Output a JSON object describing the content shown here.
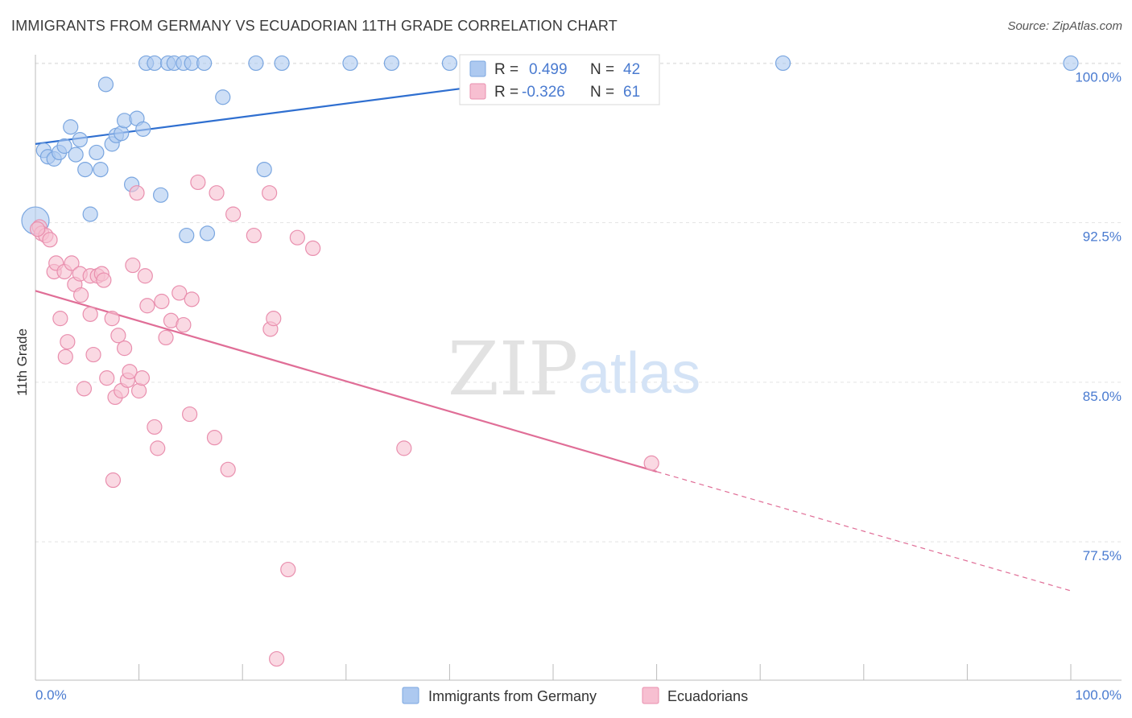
{
  "header": {
    "title": "IMMIGRANTS FROM GERMANY VS ECUADORIAN 11TH GRADE CORRELATION CHART",
    "source": "Source: ZipAtlas.com"
  },
  "watermark": {
    "zip": "ZIP",
    "atlas": "atlas"
  },
  "colors": {
    "germany_fill": "#adc9f0",
    "germany_stroke": "#7aa6e0",
    "germany_line": "#2f6fd0",
    "ecuador_fill": "#f7bfd1",
    "ecuador_stroke": "#e98fae",
    "ecuador_line": "#e06e97",
    "axis_text": "#4a7bd0",
    "grid": "#e3e3e3"
  },
  "stats": {
    "germany": {
      "r_label": "R =",
      "r_value": "0.499",
      "n_label": "N =",
      "n_value": "42"
    },
    "ecuador": {
      "r_label": "R =",
      "r_value": "-0.326",
      "n_label": "N =",
      "n_value": "61"
    }
  },
  "chart_data": {
    "type": "scatter",
    "title": "IMMIGRANTS FROM GERMANY VS ECUADORIAN 11TH GRADE CORRELATION CHART",
    "xlabel": "",
    "ylabel": "11th Grade",
    "xlim": [
      0,
      100
    ],
    "ylim": [
      71.0,
      101.0
    ],
    "x_tick_labels": [
      "0.0%",
      "100.0%"
    ],
    "y_ticks": [
      77.5,
      85.0,
      92.5,
      100.0
    ],
    "y_tick_labels": [
      "77.5%",
      "85.0%",
      "92.5%",
      "100.0%"
    ],
    "grid": true,
    "legend_position": "bottom",
    "series": [
      {
        "name": "Immigrants from Germany",
        "trend": {
          "x": [
            0,
            60
          ],
          "y": [
            96.2,
            100.0
          ],
          "dashed_to": null
        },
        "points": [
          {
            "x": 0.0,
            "y": 92.6,
            "big": true
          },
          {
            "x": 0.8,
            "y": 95.9
          },
          {
            "x": 1.2,
            "y": 95.6
          },
          {
            "x": 1.8,
            "y": 95.5
          },
          {
            "x": 2.3,
            "y": 95.8
          },
          {
            "x": 2.8,
            "y": 96.1
          },
          {
            "x": 3.4,
            "y": 97.0
          },
          {
            "x": 3.9,
            "y": 95.7
          },
          {
            "x": 4.3,
            "y": 96.4
          },
          {
            "x": 4.8,
            "y": 95.0
          },
          {
            "x": 5.3,
            "y": 92.9
          },
          {
            "x": 5.9,
            "y": 95.8
          },
          {
            "x": 6.3,
            "y": 95.0
          },
          {
            "x": 6.8,
            "y": 99.0
          },
          {
            "x": 7.4,
            "y": 96.2
          },
          {
            "x": 7.8,
            "y": 96.6
          },
          {
            "x": 8.3,
            "y": 96.7
          },
          {
            "x": 8.6,
            "y": 97.3
          },
          {
            "x": 9.3,
            "y": 94.3
          },
          {
            "x": 9.8,
            "y": 97.4
          },
          {
            "x": 10.4,
            "y": 96.9
          },
          {
            "x": 10.7,
            "y": 100.0
          },
          {
            "x": 11.5,
            "y": 100.0
          },
          {
            "x": 12.1,
            "y": 93.8
          },
          {
            "x": 12.8,
            "y": 100.0
          },
          {
            "x": 13.4,
            "y": 100.0
          },
          {
            "x": 14.3,
            "y": 100.0
          },
          {
            "x": 15.1,
            "y": 100.0
          },
          {
            "x": 14.6,
            "y": 91.9
          },
          {
            "x": 16.3,
            "y": 100.0
          },
          {
            "x": 16.6,
            "y": 92.0
          },
          {
            "x": 18.1,
            "y": 98.4
          },
          {
            "x": 21.3,
            "y": 100.0
          },
          {
            "x": 22.1,
            "y": 95.0
          },
          {
            "x": 23.8,
            "y": 100.0
          },
          {
            "x": 30.4,
            "y": 100.0
          },
          {
            "x": 34.4,
            "y": 100.0
          },
          {
            "x": 40.0,
            "y": 100.0
          },
          {
            "x": 50.1,
            "y": 100.0
          },
          {
            "x": 50.8,
            "y": 100.0
          },
          {
            "x": 72.2,
            "y": 100.0
          },
          {
            "x": 100.0,
            "y": 100.0
          }
        ]
      },
      {
        "name": "Ecuadorians",
        "trend": {
          "x": [
            0,
            60
          ],
          "y": [
            89.3,
            80.8
          ],
          "dashed_to": {
            "x": 100,
            "y": 75.2
          }
        },
        "points": [
          {
            "x": 0.4,
            "y": 92.3
          },
          {
            "x": 0.6,
            "y": 92.0
          },
          {
            "x": 1.0,
            "y": 91.9
          },
          {
            "x": 1.4,
            "y": 91.7
          },
          {
            "x": 1.8,
            "y": 90.2
          },
          {
            "x": 2.0,
            "y": 90.6
          },
          {
            "x": 2.4,
            "y": 88.0
          },
          {
            "x": 2.8,
            "y": 90.2
          },
          {
            "x": 2.9,
            "y": 86.2
          },
          {
            "x": 3.1,
            "y": 86.9
          },
          {
            "x": 3.5,
            "y": 90.6
          },
          {
            "x": 3.8,
            "y": 89.6
          },
          {
            "x": 4.3,
            "y": 90.1
          },
          {
            "x": 4.4,
            "y": 89.1
          },
          {
            "x": 4.7,
            "y": 84.7
          },
          {
            "x": 5.3,
            "y": 90.0
          },
          {
            "x": 5.3,
            "y": 88.2
          },
          {
            "x": 5.6,
            "y": 86.3
          },
          {
            "x": 6.0,
            "y": 90.0
          },
          {
            "x": 6.4,
            "y": 90.1
          },
          {
            "x": 6.6,
            "y": 89.8
          },
          {
            "x": 6.9,
            "y": 85.2
          },
          {
            "x": 7.4,
            "y": 88.0
          },
          {
            "x": 7.5,
            "y": 80.4
          },
          {
            "x": 7.7,
            "y": 84.3
          },
          {
            "x": 8.0,
            "y": 87.2
          },
          {
            "x": 8.3,
            "y": 84.6
          },
          {
            "x": 8.6,
            "y": 86.6
          },
          {
            "x": 8.9,
            "y": 85.1
          },
          {
            "x": 9.1,
            "y": 85.5
          },
          {
            "x": 9.4,
            "y": 90.5
          },
          {
            "x": 9.8,
            "y": 93.9
          },
          {
            "x": 10.0,
            "y": 84.6
          },
          {
            "x": 10.3,
            "y": 85.2
          },
          {
            "x": 10.6,
            "y": 90.0
          },
          {
            "x": 10.8,
            "y": 88.6
          },
          {
            "x": 11.5,
            "y": 82.9
          },
          {
            "x": 11.8,
            "y": 81.9
          },
          {
            "x": 12.2,
            "y": 88.8
          },
          {
            "x": 12.6,
            "y": 87.1
          },
          {
            "x": 13.1,
            "y": 87.9
          },
          {
            "x": 13.9,
            "y": 89.2
          },
          {
            "x": 14.3,
            "y": 87.7
          },
          {
            "x": 14.9,
            "y": 83.5
          },
          {
            "x": 15.1,
            "y": 88.9
          },
          {
            "x": 15.7,
            "y": 94.4
          },
          {
            "x": 17.3,
            "y": 82.4
          },
          {
            "x": 17.5,
            "y": 93.9
          },
          {
            "x": 18.6,
            "y": 80.9
          },
          {
            "x": 19.1,
            "y": 92.9
          },
          {
            "x": 21.1,
            "y": 91.9
          },
          {
            "x": 22.6,
            "y": 93.9
          },
          {
            "x": 22.7,
            "y": 87.5
          },
          {
            "x": 23.0,
            "y": 88.0
          },
          {
            "x": 23.3,
            "y": 72.0
          },
          {
            "x": 24.4,
            "y": 76.2
          },
          {
            "x": 25.3,
            "y": 91.8
          },
          {
            "x": 26.8,
            "y": 91.3
          },
          {
            "x": 35.6,
            "y": 81.9
          },
          {
            "x": 59.5,
            "y": 81.2
          },
          {
            "x": 0.2,
            "y": 92.2
          }
        ]
      }
    ]
  }
}
